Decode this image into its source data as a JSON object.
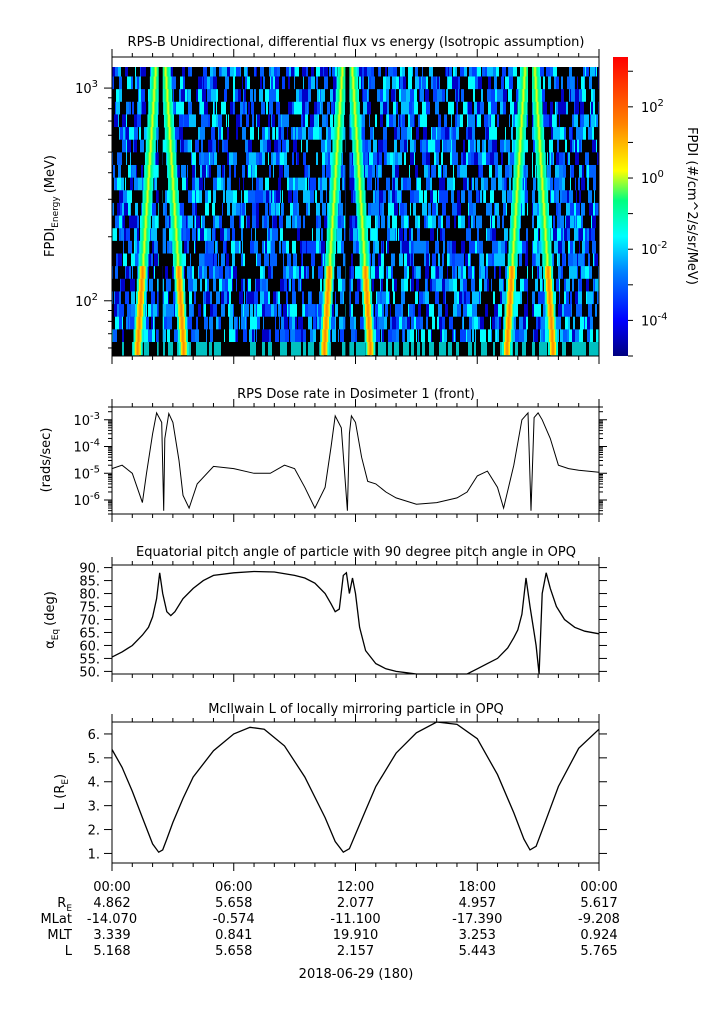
{
  "colors": {
    "line": "#000000",
    "background": "#ffffff"
  },
  "time_axis": {
    "tick_labels": [
      "00:00",
      "06:00",
      "12:00",
      "18:00",
      "00:00"
    ],
    "date_label": "2018-06-29 (180)"
  },
  "ephemeris": {
    "rows": [
      {
        "label": "RE",
        "values": [
          "4.862",
          "5.658",
          "2.077",
          "4.957",
          "5.617"
        ]
      },
      {
        "label": "MLat",
        "values": [
          "-14.070",
          "-0.574",
          "-11.100",
          "-17.390",
          "-9.208"
        ]
      },
      {
        "label": "MLT",
        "values": [
          "3.339",
          "0.841",
          "19.910",
          "3.253",
          "0.924"
        ]
      },
      {
        "label": "L",
        "values": [
          "5.168",
          "5.658",
          "2.157",
          "5.443",
          "5.765"
        ]
      }
    ]
  },
  "chart_data": [
    {
      "type": "heatmap",
      "title": "RPS-B  Unidirectional, differential flux vs energy (Isotropic assumption)",
      "ylabel_main": "FPDI",
      "ylabel_sub": "Energy",
      "ylabel_unit": "(MeV)",
      "y_scale": "log",
      "ylim": [
        55,
        1400
      ],
      "y_ticks": [
        {
          "base": "10",
          "exp": "3",
          "value": 1000
        },
        {
          "base": "10",
          "exp": "2",
          "value": 100
        }
      ],
      "xlim_hours": [
        0,
        24
      ],
      "peaks_hours": [
        2.4,
        11.6,
        20.6
      ],
      "colorbar": {
        "label": "FPDI (#/cm^2/s/sr/MeV)",
        "scale": "log",
        "range_log10": [
          -5,
          3.4
        ],
        "ticks": [
          {
            "base": "10",
            "exp": "2",
            "log10": 2
          },
          {
            "base": "10",
            "exp": "0",
            "log10": 0
          },
          {
            "base": "10",
            "exp": "-2",
            "log10": -2
          },
          {
            "base": "10",
            "exp": "-4",
            "log10": -4
          }
        ],
        "colors": [
          "#00007f",
          "#0000ff",
          "#0080ff",
          "#00ffff",
          "#00ff80",
          "#ffff00",
          "#ff8000",
          "#ff0000"
        ]
      }
    },
    {
      "type": "line",
      "title": "RPS  Dose rate in Dosimeter 1 (front)",
      "ylabel": "(rads/sec)",
      "y_scale": "log",
      "ylim": [
        3e-07,
        0.003
      ],
      "y_ticks": [
        {
          "base": "10",
          "exp": "-3",
          "value": 0.001
        },
        {
          "base": "10",
          "exp": "-4",
          "value": 0.0001
        },
        {
          "base": "10",
          "exp": "-5",
          "value": 1e-05
        },
        {
          "base": "10",
          "exp": "-6",
          "value": 1e-06
        }
      ],
      "xlim_hours": [
        0,
        24
      ],
      "x": [
        0,
        0.5,
        1.0,
        1.5,
        1.7,
        2.0,
        2.2,
        2.45,
        2.55,
        2.6,
        2.8,
        3.0,
        3.3,
        3.5,
        3.8,
        4.2,
        5.0,
        6.0,
        7.0,
        7.8,
        8.5,
        9.0,
        9.5,
        10.0,
        10.5,
        10.8,
        11.0,
        11.3,
        11.6,
        11.7,
        11.8,
        12.0,
        12.3,
        12.6,
        13.0,
        13.5,
        14.0,
        15.0,
        16.0,
        17.0,
        17.5,
        18.0,
        18.5,
        19.0,
        19.3,
        19.8,
        20.2,
        20.5,
        20.65,
        20.8,
        21.0,
        21.2,
        21.6,
        22.0,
        22.5,
        23.0,
        24.0
      ],
      "y": [
        1.5e-05,
        2e-05,
        1e-05,
        8e-07,
        1e-05,
        0.0003,
        0.0018,
        0.0008,
        4e-07,
        0.0002,
        0.0017,
        0.0008,
        3e-05,
        1.5e-06,
        5e-07,
        4e-06,
        1.8e-05,
        1.5e-05,
        1e-05,
        1e-05,
        2e-05,
        1.5e-05,
        3e-06,
        5e-07,
        3e-06,
        0.0001,
        0.0014,
        0.0005,
        4e-07,
        0.0003,
        0.0014,
        0.0008,
        4e-05,
        5e-06,
        4e-06,
        2e-06,
        1.2e-06,
        7e-07,
        8e-07,
        1.2e-06,
        2e-06,
        8e-06,
        1.2e-05,
        3e-06,
        5e-07,
        2e-05,
        0.001,
        0.0018,
        4e-07,
        0.0012,
        0.0018,
        0.001,
        0.0002,
        2e-05,
        1.5e-05,
        1.3e-05,
        1.1e-05
      ]
    },
    {
      "type": "line",
      "title": "Equatorial pitch angle of particle with 90 degree pitch angle in OPQ",
      "ylabel_main": "α",
      "ylabel_sub": "Eq",
      "ylabel_unit": "(deg)",
      "ylim": [
        49,
        91
      ],
      "y_ticks": [
        90,
        85,
        80,
        75,
        70,
        65,
        60,
        55,
        50
      ],
      "xlim_hours": [
        0,
        24
      ],
      "x": [
        0,
        0.5,
        1.0,
        1.5,
        1.8,
        2.0,
        2.2,
        2.35,
        2.5,
        2.7,
        2.9,
        3.1,
        3.5,
        4.0,
        4.5,
        5.0,
        6.0,
        7.0,
        8.0,
        9.0,
        9.5,
        10.0,
        10.5,
        10.8,
        11.0,
        11.2,
        11.4,
        11.55,
        11.7,
        11.85,
        12.0,
        12.2,
        12.5,
        13.0,
        13.5,
        14.0,
        14.5,
        15.0,
        17.4,
        17.5,
        18.0,
        18.5,
        19.0,
        19.5,
        19.8,
        20.0,
        20.2,
        20.4,
        20.6,
        20.8,
        20.9,
        21.05,
        21.2,
        21.4,
        21.6,
        21.9,
        22.3,
        22.8,
        23.3,
        24.0
      ],
      "y": [
        55.5,
        57.5,
        60,
        64,
        67,
        71,
        78,
        88,
        80,
        73,
        71.5,
        73,
        78,
        82,
        85,
        87,
        88,
        88.5,
        88.3,
        87,
        86,
        84,
        80,
        76,
        73,
        74,
        87,
        88,
        80,
        86,
        80,
        67,
        58,
        53,
        51,
        50,
        49.5,
        49,
        49,
        49,
        51,
        53,
        55,
        59,
        63,
        66,
        72,
        86,
        75,
        65,
        60,
        49,
        80,
        88,
        82,
        75,
        70,
        67,
        65.5,
        64.5
      ]
    },
    {
      "type": "line",
      "title": "McIlwain L of locally mirroring particle in OPQ",
      "ylabel_main": "L (R",
      "ylabel_sub": "E",
      "ylabel_unit": ")",
      "ylim": [
        0.6,
        6.5
      ],
      "y_ticks": [
        6,
        5,
        4,
        3,
        2,
        1
      ],
      "xlim_hours": [
        0,
        24
      ],
      "x": [
        0,
        0.5,
        1.0,
        1.5,
        2.0,
        2.3,
        2.5,
        2.7,
        3.0,
        3.5,
        4.0,
        5.0,
        6.0,
        6.8,
        7.5,
        8.5,
        9.5,
        10.5,
        11.0,
        11.4,
        11.7,
        12.0,
        12.5,
        13.0,
        14.0,
        15.0,
        16.0,
        17.0,
        18.0,
        19.0,
        19.8,
        20.3,
        20.6,
        20.9,
        21.3,
        22.0,
        23.0,
        24.0
      ],
      "y": [
        5.35,
        4.6,
        3.6,
        2.5,
        1.4,
        1.05,
        1.15,
        1.6,
        2.3,
        3.3,
        4.2,
        5.3,
        6.0,
        6.28,
        6.2,
        5.5,
        4.2,
        2.5,
        1.5,
        1.05,
        1.2,
        1.8,
        2.8,
        3.8,
        5.2,
        6.05,
        6.5,
        6.4,
        5.8,
        4.3,
        2.7,
        1.6,
        1.15,
        1.3,
        2.2,
        3.8,
        5.4,
        6.2
      ]
    }
  ]
}
